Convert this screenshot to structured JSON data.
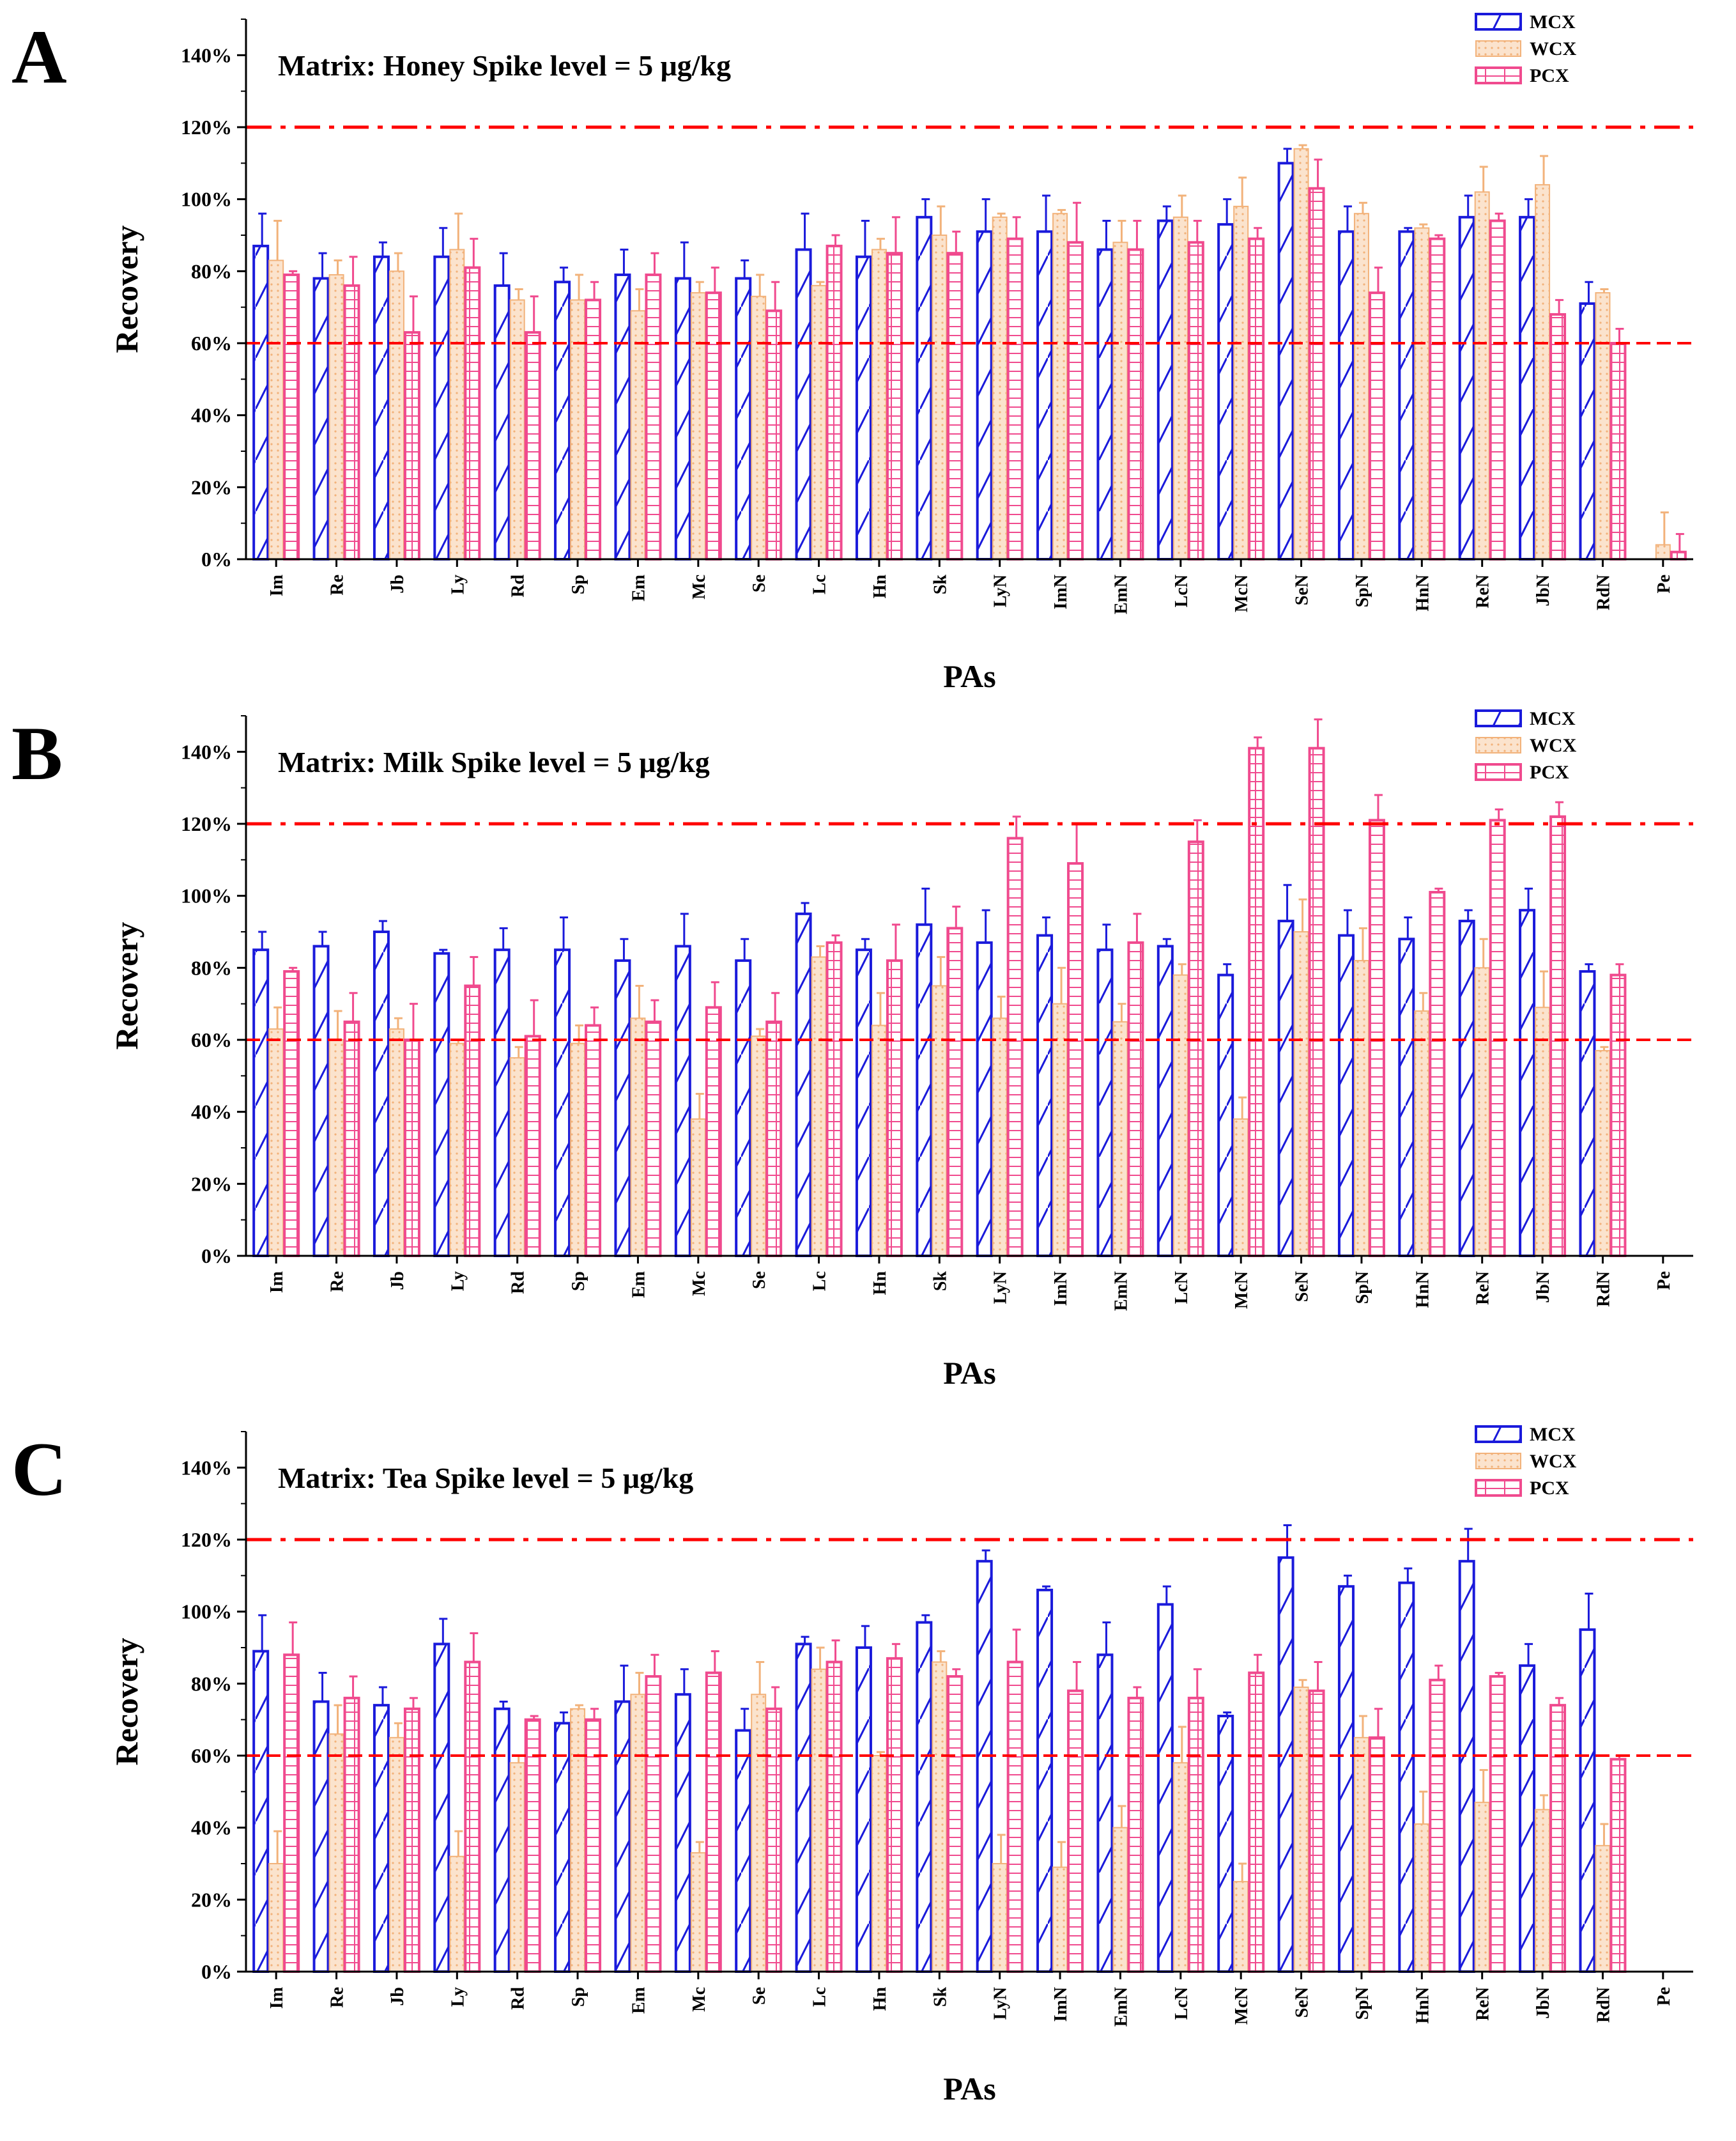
{
  "series_names": [
    "MCX",
    "WCX",
    "PCX"
  ],
  "colors": {
    "MCX": "#1a1adb",
    "WCX": "#f2b27a",
    "PCX": "#f04a8e",
    "ref": "#ff0000",
    "WCX_fill": "#fbe3cd"
  },
  "chart_data": [
    {
      "id": "a",
      "panel_label": "A",
      "type": "bar",
      "title": "Matrix: Honey  Spike level = 5 μg/kg",
      "xlabel": "PAs",
      "ylabel": "Recovery",
      "ylim": [
        0,
        150
      ],
      "yticks": [
        "0%",
        "20%",
        "40%",
        "60%",
        "80%",
        "100%",
        "120%",
        "140%"
      ],
      "reference_lines": [
        60,
        120
      ],
      "categories": [
        "Im",
        "Re",
        "Jb",
        "Ly",
        "Rd",
        "Sp",
        "Em",
        "Mc",
        "Se",
        "Lc",
        "Hn",
        "Sk",
        "LyN",
        "ImN",
        "EmN",
        "LcN",
        "McN",
        "SeN",
        "SpN",
        "HnN",
        "ReN",
        "JbN",
        "RdN",
        "Pe"
      ],
      "series": [
        {
          "name": "MCX",
          "values": [
            87,
            78,
            84,
            84,
            76,
            77,
            79,
            78,
            78,
            86,
            84,
            95,
            91,
            91,
            86,
            94,
            93,
            110,
            91,
            91,
            95,
            95,
            71,
            0
          ],
          "errors": [
            9,
            7,
            4,
            8,
            9,
            4,
            7,
            10,
            5,
            10,
            10,
            5,
            9,
            10,
            8,
            4,
            7,
            4,
            7,
            1,
            6,
            5,
            6,
            0
          ]
        },
        {
          "name": "WCX",
          "values": [
            83,
            79,
            80,
            86,
            72,
            72,
            69,
            74,
            73,
            76,
            86,
            90,
            95,
            96,
            88,
            95,
            98,
            114,
            96,
            92,
            102,
            104,
            74,
            4
          ],
          "errors": [
            11,
            4,
            5,
            10,
            3,
            7,
            6,
            3,
            6,
            1,
            3,
            8,
            1,
            1,
            6,
            6,
            8,
            1,
            3,
            1,
            7,
            8,
            1,
            9
          ]
        },
        {
          "name": "PCX",
          "values": [
            79,
            76,
            63,
            81,
            63,
            72,
            79,
            74,
            69,
            87,
            85,
            85,
            89,
            88,
            86,
            88,
            89,
            103,
            74,
            89,
            94,
            68,
            60,
            2
          ],
          "errors": [
            1,
            8,
            10,
            8,
            10,
            5,
            6,
            7,
            8,
            3,
            10,
            6,
            6,
            11,
            8,
            6,
            3,
            8,
            7,
            1,
            2,
            4,
            4,
            5
          ]
        }
      ]
    },
    {
      "id": "b",
      "panel_label": "B",
      "type": "bar",
      "title": "Matrix: Milk  Spike level = 5 μg/kg",
      "xlabel": "PAs",
      "ylabel": "Recovery",
      "ylim": [
        0,
        150
      ],
      "yticks": [
        "0%",
        "20%",
        "40%",
        "60%",
        "80%",
        "100%",
        "120%",
        "140%"
      ],
      "reference_lines": [
        60,
        120
      ],
      "categories": [
        "Im",
        "Re",
        "Jb",
        "Ly",
        "Rd",
        "Sp",
        "Em",
        "Mc",
        "Se",
        "Lc",
        "Hn",
        "Sk",
        "LyN",
        "ImN",
        "EmN",
        "LcN",
        "McN",
        "SeN",
        "SpN",
        "HnN",
        "ReN",
        "JbN",
        "RdN",
        "Pe"
      ],
      "series": [
        {
          "name": "MCX",
          "values": [
            85,
            86,
            90,
            84,
            85,
            85,
            82,
            86,
            82,
            95,
            85,
            92,
            87,
            89,
            85,
            86,
            78,
            93,
            89,
            88,
            93,
            96,
            79,
            0
          ],
          "errors": [
            5,
            4,
            3,
            1,
            6,
            9,
            6,
            9,
            6,
            3,
            3,
            10,
            9,
            5,
            7,
            2,
            3,
            10,
            7,
            6,
            3,
            6,
            2,
            0
          ]
        },
        {
          "name": "WCX",
          "values": [
            63,
            60,
            63,
            59,
            55,
            59,
            66,
            38,
            61,
            83,
            64,
            75,
            66,
            70,
            65,
            78,
            38,
            90,
            82,
            68,
            80,
            69,
            57,
            0
          ],
          "errors": [
            6,
            8,
            3,
            1,
            3,
            5,
            9,
            7,
            2,
            3,
            9,
            8,
            6,
            10,
            5,
            3,
            6,
            9,
            9,
            5,
            8,
            10,
            1,
            0
          ]
        },
        {
          "name": "PCX",
          "values": [
            79,
            65,
            60,
            75,
            61,
            64,
            65,
            69,
            65,
            87,
            82,
            91,
            116,
            109,
            87,
            115,
            141,
            141,
            121,
            101,
            121,
            122,
            78,
            0
          ],
          "errors": [
            1,
            8,
            10,
            8,
            10,
            5,
            6,
            7,
            8,
            2,
            10,
            6,
            6,
            11,
            8,
            6,
            3,
            8,
            7,
            1,
            3,
            4,
            3,
            0
          ]
        }
      ]
    },
    {
      "id": "c",
      "panel_label": "C",
      "type": "bar",
      "title": "Matrix: Tea  Spike level = 5 μg/kg",
      "xlabel": "PAs",
      "ylabel": "Recovery",
      "ylim": [
        0,
        150
      ],
      "yticks": [
        "0%",
        "20%",
        "40%",
        "60%",
        "80%",
        "100%",
        "120%",
        "140%"
      ],
      "reference_lines": [
        60,
        120
      ],
      "categories": [
        "Im",
        "Re",
        "Jb",
        "Ly",
        "Rd",
        "Sp",
        "Em",
        "Mc",
        "Se",
        "Lc",
        "Hn",
        "Sk",
        "LyN",
        "ImN",
        "EmN",
        "LcN",
        "McN",
        "SeN",
        "SpN",
        "HnN",
        "ReN",
        "JbN",
        "RdN",
        "Pe"
      ],
      "series": [
        {
          "name": "MCX",
          "values": [
            89,
            75,
            74,
            91,
            73,
            69,
            75,
            77,
            67,
            91,
            90,
            97,
            114,
            106,
            88,
            102,
            71,
            115,
            107,
            108,
            114,
            85,
            95,
            0
          ],
          "errors": [
            10,
            8,
            5,
            7,
            2,
            3,
            10,
            7,
            6,
            2,
            6,
            2,
            3,
            1,
            9,
            5,
            1,
            9,
            3,
            4,
            9,
            6,
            10,
            0
          ]
        },
        {
          "name": "WCX",
          "values": [
            30,
            66,
            65,
            32,
            58,
            73,
            77,
            33,
            77,
            84,
            60,
            86,
            30,
            29,
            40,
            58,
            25,
            79,
            65,
            41,
            47,
            45,
            35,
            0
          ],
          "errors": [
            9,
            8,
            4,
            7,
            2,
            1,
            6,
            3,
            9,
            6,
            1,
            3,
            8,
            7,
            6,
            10,
            5,
            2,
            6,
            9,
            9,
            4,
            6,
            0
          ]
        },
        {
          "name": "PCX",
          "values": [
            88,
            76,
            73,
            86,
            70,
            70,
            82,
            83,
            73,
            86,
            87,
            82,
            86,
            78,
            76,
            76,
            83,
            78,
            65,
            81,
            82,
            74,
            59,
            0
          ],
          "errors": [
            9,
            6,
            3,
            8,
            1,
            3,
            6,
            6,
            6,
            6,
            4,
            2,
            9,
            8,
            3,
            8,
            5,
            8,
            8,
            4,
            1,
            2,
            1,
            0
          ]
        }
      ]
    }
  ]
}
